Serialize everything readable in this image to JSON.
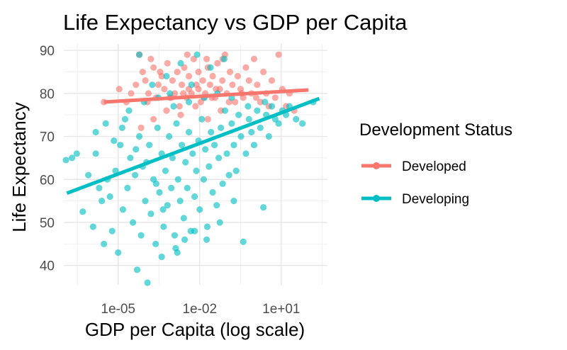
{
  "chart_data": {
    "type": "scatter",
    "title": "Life Expectancy vs GDP per Capita",
    "xlabel": "GDP per Capita (log scale)",
    "ylabel": "Life Expectancy",
    "x_scale": "log10",
    "xlim": [
      1e-07,
      500
    ],
    "ylim": [
      35.5,
      91.5
    ],
    "x_ticks": [
      {
        "value": 1e-05,
        "label": "1e-05"
      },
      {
        "value": 0.01,
        "label": "1e-02"
      },
      {
        "value": 10,
        "label": "1e+01"
      }
    ],
    "y_ticks": [
      {
        "value": 40,
        "label": "40"
      },
      {
        "value": 50,
        "label": "50"
      },
      {
        "value": 60,
        "label": "60"
      },
      {
        "value": 70,
        "label": "70"
      },
      {
        "value": 80,
        "label": "80"
      },
      {
        "value": 90,
        "label": "90"
      }
    ],
    "grid": true,
    "legend": {
      "title": "Development Status",
      "position": "right"
    },
    "series": [
      {
        "name": "Developed",
        "color": "#F8766D",
        "points": [
          [
            3e-06,
            78
          ],
          [
            1.1e-05,
            81
          ],
          [
            2e-05,
            78
          ],
          [
            3e-05,
            80
          ],
          [
            4.5e-05,
            82
          ],
          [
            6e-05,
            89
          ],
          [
            8e-05,
            85
          ],
          [
            0.0001,
            83
          ],
          [
            0.00013,
            80
          ],
          [
            0.00016,
            88
          ],
          [
            0.0002,
            86
          ],
          [
            0.00025,
            79
          ],
          [
            0.0003,
            82
          ],
          [
            0.0004,
            84
          ],
          [
            0.0005,
            81
          ],
          [
            0.00065,
            87
          ],
          [
            0.0008,
            79
          ],
          [
            0.001,
            83
          ],
          [
            0.0012,
            80
          ],
          [
            0.0015,
            85
          ],
          [
            0.0018,
            77
          ],
          [
            0.0022,
            82
          ],
          [
            0.0027,
            86
          ],
          [
            0.0033,
            79
          ],
          [
            0.004,
            84
          ],
          [
            0.005,
            80
          ],
          [
            0.006,
            88
          ],
          [
            0.0075,
            82
          ],
          [
            0.009,
            85
          ],
          [
            0.011,
            78
          ],
          [
            0.013,
            83
          ],
          [
            0.016,
            80
          ],
          [
            0.02,
            86
          ],
          [
            0.024,
            82
          ],
          [
            0.03,
            84
          ],
          [
            0.037,
            79
          ],
          [
            0.045,
            87
          ],
          [
            0.055,
            81
          ],
          [
            0.068,
            83
          ],
          [
            0.085,
            89
          ],
          [
            0.1,
            80
          ],
          [
            0.13,
            85
          ],
          [
            0.16,
            82
          ],
          [
            0.2,
            78
          ],
          [
            0.25,
            84
          ],
          [
            0.32,
            81
          ],
          [
            0.4,
            79
          ],
          [
            0.5,
            86
          ],
          [
            0.65,
            83
          ],
          [
            0.8,
            80
          ],
          [
            1.0,
            88
          ],
          [
            1.3,
            82
          ],
          [
            1.7,
            78
          ],
          [
            2.2,
            85
          ],
          [
            2.8,
            80
          ],
          [
            3.5,
            77
          ],
          [
            4.5,
            83
          ],
          [
            6,
            79
          ],
          [
            8,
            89
          ],
          [
            11,
            81
          ],
          [
            15,
            77
          ],
          [
            20,
            80
          ],
          [
            30,
            76
          ],
          [
            7e-05,
            72
          ],
          [
            0.0002,
            74
          ],
          [
            0.0006,
            76
          ],
          [
            0.002,
            75
          ],
          [
            0.007,
            77
          ],
          [
            0.02,
            74
          ],
          [
            0.06,
            76
          ],
          [
            0.00012,
            78
          ],
          [
            0.0009,
            79
          ],
          [
            0.004,
            81
          ],
          [
            0.014,
            79
          ],
          [
            0.04,
            81
          ],
          [
            0.12,
            78
          ],
          [
            0.35,
            80
          ],
          [
            1.2,
            79
          ],
          [
            0.0035,
            89
          ],
          [
            0.018,
            88
          ],
          [
            0.07,
            88
          ],
          [
            0.00035,
            85
          ],
          [
            0.0025,
            80
          ],
          [
            0.009,
            81
          ],
          [
            0.028,
            79
          ]
        ],
        "trend": {
          "x": [
            3e-06,
            100
          ],
          "y": [
            78.0,
            80.8
          ]
        }
      },
      {
        "name": "Developing",
        "color": "#00BFC4",
        "points": [
          [
            1.2e-07,
            64.5
          ],
          [
            2e-07,
            65
          ],
          [
            3e-07,
            66
          ],
          [
            5e-07,
            52.5
          ],
          [
            8e-07,
            61
          ],
          [
            1.2e-06,
            49
          ],
          [
            1.5e-06,
            66
          ],
          [
            2e-06,
            58
          ],
          [
            2.5e-06,
            55
          ],
          [
            3e-06,
            45
          ],
          [
            4e-06,
            60
          ],
          [
            5e-06,
            56
          ],
          [
            6e-06,
            48
          ],
          [
            8e-06,
            62
          ],
          [
            1e-05,
            43
          ],
          [
            1.2e-05,
            68
          ],
          [
            1.5e-05,
            53
          ],
          [
            1.8e-05,
            74
          ],
          [
            2.2e-05,
            58
          ],
          [
            2.8e-05,
            65
          ],
          [
            3.5e-05,
            50
          ],
          [
            4.2e-05,
            61
          ],
          [
            5e-05,
            39
          ],
          [
            6e-05,
            70
          ],
          [
            7e-05,
            47
          ],
          [
            8e-05,
            63
          ],
          [
            0.0001,
            55
          ],
          [
            0.00012,
            36
          ],
          [
            0.00014,
            68
          ],
          [
            0.00016,
            52
          ],
          [
            0.0002,
            60
          ],
          [
            0.00024,
            45
          ],
          [
            0.00028,
            72
          ],
          [
            0.00033,
            57
          ],
          [
            0.0004,
            66
          ],
          [
            0.00047,
            49
          ],
          [
            0.00055,
            62
          ],
          [
            0.00065,
            54
          ],
          [
            0.00075,
            70
          ],
          [
            0.0009,
            58
          ],
          [
            0.001,
            65
          ],
          [
            0.0012,
            47
          ],
          [
            0.0014,
            73
          ],
          [
            0.0016,
            60
          ],
          [
            0.0019,
            55
          ],
          [
            0.0022,
            68
          ],
          [
            0.0026,
            51
          ],
          [
            0.003,
            64
          ],
          [
            0.0035,
            58
          ],
          [
            0.004,
            71
          ],
          [
            0.0047,
            48
          ],
          [
            0.0055,
            66
          ],
          [
            0.0065,
            56
          ],
          [
            0.0075,
            62
          ],
          [
            0.009,
            69
          ],
          [
            0.01,
            53
          ],
          [
            0.012,
            74
          ],
          [
            0.014,
            60
          ],
          [
            0.016,
            67
          ],
          [
            0.019,
            49
          ],
          [
            0.022,
            63
          ],
          [
            0.026,
            71
          ],
          [
            0.03,
            57
          ],
          [
            0.035,
            68
          ],
          [
            0.042,
            54
          ],
          [
            0.05,
            65
          ],
          [
            0.06,
            72
          ],
          [
            0.07,
            59
          ],
          [
            0.085,
            76
          ],
          [
            0.1,
            66
          ],
          [
            0.12,
            61
          ],
          [
            0.15,
            73
          ],
          [
            0.18,
            68
          ],
          [
            0.22,
            62
          ],
          [
            0.27,
            75
          ],
          [
            0.33,
            70
          ],
          [
            0.4,
            45.5
          ],
          [
            0.5,
            66
          ],
          [
            0.65,
            74
          ],
          [
            0.8,
            71
          ],
          [
            1.0,
            68
          ],
          [
            1.3,
            76
          ],
          [
            1.7,
            72
          ],
          [
            2.2,
            53.5
          ],
          [
            2.8,
            75
          ],
          [
            3.5,
            70
          ],
          [
            4.5,
            77
          ],
          [
            6,
            74
          ],
          [
            8,
            73
          ],
          [
            11,
            76
          ],
          [
            15,
            75
          ],
          [
            20,
            77
          ],
          [
            35,
            74
          ],
          [
            60,
            73
          ],
          [
            150,
            78
          ],
          [
            2.5e-05,
            76
          ],
          [
            6e-05,
            89
          ],
          [
            0.00018,
            82
          ],
          [
            0.0006,
            84
          ],
          [
            0.002,
            87
          ],
          [
            0.008,
            89
          ],
          [
            0.025,
            86
          ],
          [
            0.08,
            88
          ],
          [
            0.0008,
            80
          ],
          [
            0.005,
            82
          ],
          [
            9e-05,
            78
          ],
          [
            0.0003,
            79
          ],
          [
            0.0011,
            77
          ],
          [
            0.004,
            78
          ],
          [
            0.015,
            79
          ],
          [
            0.045,
            80
          ],
          [
            0.15,
            79
          ],
          [
            0.6,
            77
          ],
          [
            2.5,
            78
          ],
          [
            1.5e-06,
            71
          ],
          [
            3.5e-06,
            73
          ],
          [
            7e-06,
            69
          ],
          [
            1.4e-05,
            72
          ],
          [
            4.5e-05,
            67
          ],
          [
            0.00011,
            64
          ],
          [
            0.00025,
            59
          ],
          [
            0.00045,
            53
          ],
          [
            0.0013,
            44
          ],
          [
            0.0028,
            46
          ],
          [
            0.0065,
            48
          ],
          [
            0.018,
            46
          ],
          [
            0.055,
            50
          ],
          [
            0.18,
            55
          ],
          [
            0.0004,
            42
          ],
          [
            0.0015,
            43
          ]
        ],
        "trend": {
          "x": [
            1.3e-07,
            250
          ],
          "y": [
            56.8,
            78.8
          ]
        }
      }
    ]
  }
}
